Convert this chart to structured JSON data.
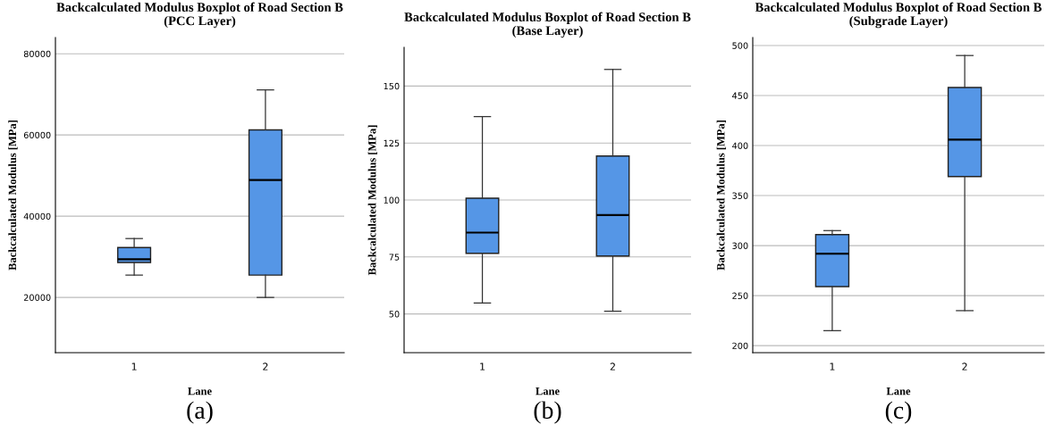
{
  "chart_data": [
    {
      "type": "box",
      "title": "Backcalculated Modulus Boxplot of Road Section B\n(PCC Layer)",
      "xlabel": "Lane",
      "ylabel": "Backcalculated Modulus [MPa]",
      "categories": [
        "1",
        "2"
      ],
      "color": "#5596e6",
      "boxes": [
        {
          "low": 25500,
          "q1": 28600,
          "median": 29400,
          "q3": 32300,
          "high": 34500
        },
        {
          "low": 20000,
          "q1": 25500,
          "median": 48900,
          "q3": 61250,
          "high": 71100
        }
      ],
      "ylim": [
        6400,
        84000
      ],
      "yticks": [
        20000,
        40000,
        60000,
        80000
      ],
      "grid": "y",
      "annotations": [
        "(a)"
      ]
    },
    {
      "type": "box",
      "title": "Backcalculated Modulus Boxplot of Road Section B\n(Base Layer)",
      "xlabel": "Lane",
      "ylabel": "Backcalculated Modulus [MPa]",
      "categories": [
        "1",
        "2"
      ],
      "color": "#5596e6",
      "boxes": [
        {
          "low": 54.8,
          "q1": 76.6,
          "median": 85.7,
          "q3": 100.8,
          "high": 136.6
        },
        {
          "low": 51.2,
          "q1": 75.4,
          "median": 93.4,
          "q3": 119.3,
          "high": 157.3
        }
      ],
      "ylim": [
        33,
        167
      ],
      "yticks": [
        50,
        75,
        100,
        125,
        150
      ],
      "grid": "y",
      "annotations": [
        "(b)"
      ]
    },
    {
      "type": "box",
      "title": "Backcalculated Modulus Boxplot of Road Section B\n(Subgrade Layer)",
      "xlabel": "Lane",
      "ylabel": "Backcalculated Modulus [MPa]",
      "categories": [
        "1",
        "2"
      ],
      "color": "#5596e6",
      "boxes": [
        {
          "low": 215,
          "q1": 259,
          "median": 292,
          "q3": 311,
          "high": 315
        },
        {
          "low": 235,
          "q1": 369,
          "median": 406,
          "q3": 458,
          "high": 490
        }
      ],
      "ylim": [
        193,
        508
      ],
      "yticks": [
        200,
        250,
        300,
        350,
        400,
        450,
        500
      ],
      "grid": "y",
      "annotations": [
        "(c)"
      ]
    }
  ]
}
